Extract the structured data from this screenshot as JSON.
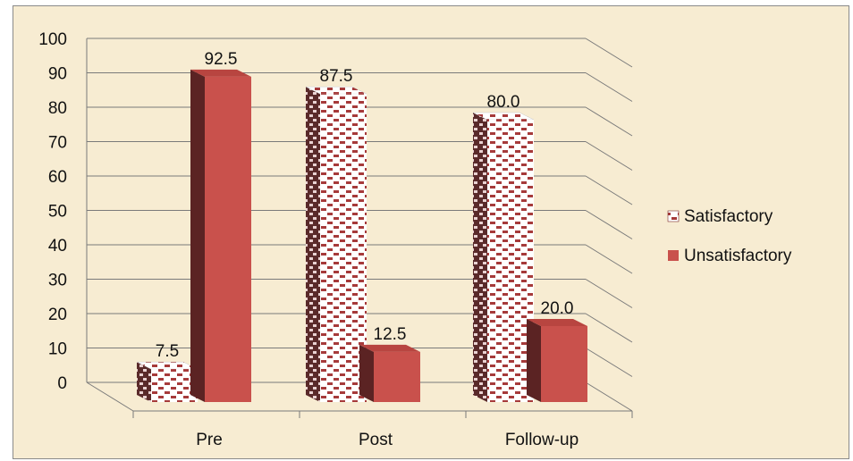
{
  "chart_data": {
    "type": "bar",
    "categories": [
      "Pre",
      "Post",
      "Follow-up"
    ],
    "series": [
      {
        "name": "Satisfactory",
        "values": [
          7.5,
          87.5,
          80.0
        ],
        "labels": [
          "7.5",
          "87.5",
          "80.0"
        ],
        "color": "#b54a4a",
        "pattern": "dotted-brick"
      },
      {
        "name": "Unsatisfactory",
        "values": [
          92.5,
          12.5,
          20.0
        ],
        "labels": [
          "92.5",
          "12.5",
          "20.0"
        ],
        "color": "#c9514c",
        "pattern": "solid"
      }
    ],
    "yticks": [
      "0",
      "10",
      "20",
      "30",
      "40",
      "50",
      "60",
      "70",
      "80",
      "90",
      "100"
    ],
    "ylim": [
      0,
      100
    ],
    "grid": true,
    "legend": "right",
    "style": "3d"
  }
}
